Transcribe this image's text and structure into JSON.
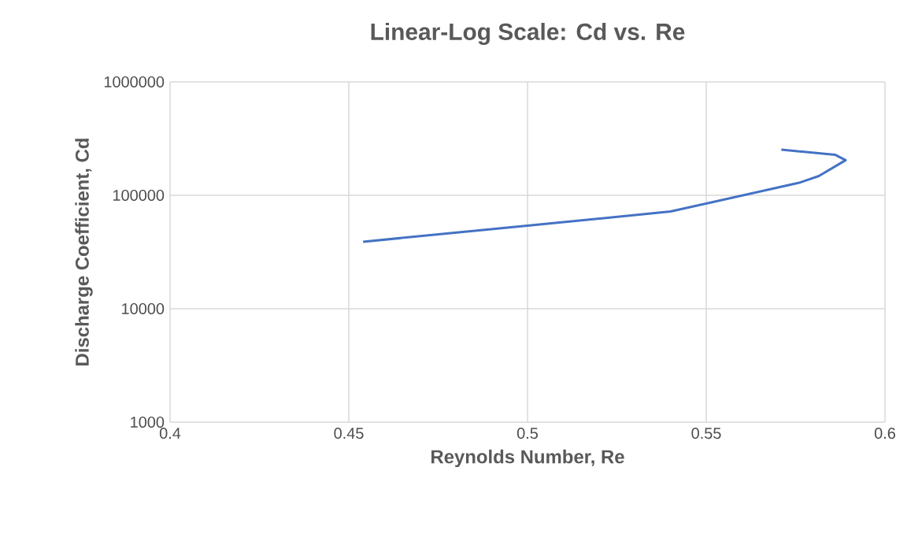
{
  "chart_data": {
    "type": "line",
    "title": "Linear-Log Scale: Cd vs. Re",
    "xlabel": "Reynolds Number, Re",
    "ylabel": "Discharge Coefficient, Cd",
    "series": [
      {
        "color": "#4472c4",
        "x": [
          0.454,
          0.5,
          0.54,
          0.576,
          0.5815,
          0.589,
          0.586,
          0.571
        ],
        "values": [
          39000,
          54000,
          72000,
          129000,
          148000,
          204000,
          228000,
          253000
        ]
      }
    ],
    "xlim": [
      0.4,
      0.6
    ],
    "xticks": [
      0.4,
      0.45,
      0.5,
      0.55,
      0.6
    ],
    "ylim": [
      1000,
      1000000
    ],
    "yticks": [
      1000,
      10000,
      100000,
      1000000
    ],
    "log": "y",
    "grid": true,
    "marker": "none",
    "line_style": "solid"
  }
}
